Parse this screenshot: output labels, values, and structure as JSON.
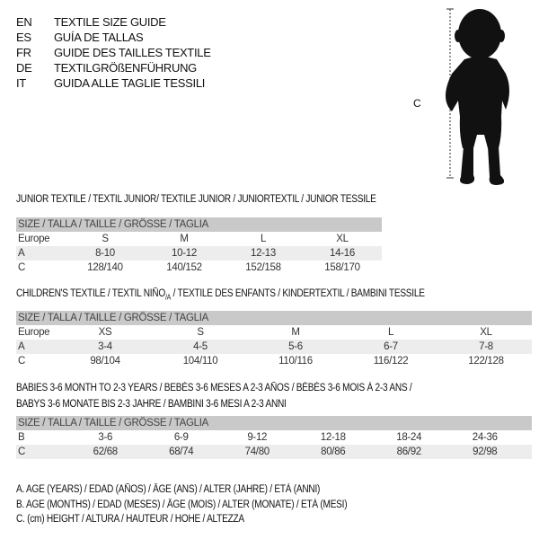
{
  "languages": [
    {
      "code": "EN",
      "text": "TEXTILE SIZE GUIDE"
    },
    {
      "code": "ES",
      "text": "GUÍA DE TALLAS"
    },
    {
      "code": "FR",
      "text": "GUIDE DES TAILLES TEXTILE"
    },
    {
      "code": "DE",
      "text": "TEXTILGRÖßENFÜHRUNG"
    },
    {
      "code": "IT",
      "text": "GUIDA ALLE TAGLIE TESSILI"
    }
  ],
  "figure": {
    "dimension_label": "C",
    "icon": "child-silhouette"
  },
  "junior": {
    "title": "JUNIOR TEXTILE / TEXTIL JUNIOR/ TEXTILE JUNIOR / JUNIORTEXTIL / JUNIOR TESSILE",
    "header": "SIZE / TALLA / TAILLE / GRÖSSE / TAGLIA",
    "rows": [
      {
        "label": "Europe",
        "cells": [
          "S",
          "M",
          "L",
          "XL"
        ]
      },
      {
        "label": "A",
        "cells": [
          "8-10",
          "10-12",
          "12-13",
          "14-16"
        ]
      },
      {
        "label": "C",
        "cells": [
          "128/140",
          "140/152",
          "152/158",
          "158/170"
        ]
      }
    ]
  },
  "children": {
    "title_main": "CHILDREN'S TEXTILE / TEXTIL NIÑO",
    "title_sub": "/A",
    "title_rest": " / TEXTILE DES ENFANTS / KINDERTEXTIL / BAMBINI TESSILE",
    "header": "SIZE / TALLA / TAILLE / GRÖSSE / TAGLIA",
    "rows": [
      {
        "label": "Europe",
        "cells": [
          "XS",
          "S",
          "M",
          "L",
          "XL"
        ]
      },
      {
        "label": "A",
        "cells": [
          "3-4",
          "4-5",
          "5-6",
          "6-7",
          "7-8"
        ]
      },
      {
        "label": "C",
        "cells": [
          "98/104",
          "104/110",
          "110/116",
          "116/122",
          "122/128"
        ]
      }
    ]
  },
  "babies": {
    "title_line1": "BABIES 3-6 MONTH TO 2-3 YEARS / BEBÉS 3-6 MESES A 2-3 AÑOS / BÉBÉS 3-6 MOIS À 2-3 ANS /",
    "title_line2": "BABYS 3-6 MONATE BIS 2-3 JAHRE / BAMBINI 3-6 MESI A 2-3 ANNI",
    "header": "SIZE / TALLA / TAILLE / GRÖSSE / TAGLIA",
    "rows": [
      {
        "label": "B",
        "cells": [
          "3-6",
          "6-9",
          "9-12",
          "12-18",
          "18-24",
          "24-36"
        ]
      },
      {
        "label": "C",
        "cells": [
          "62/68",
          "68/74",
          "74/80",
          "80/86",
          "86/92",
          "92/98"
        ]
      }
    ]
  },
  "legend": [
    "A. AGE (YEARS) / EDAD (AÑOS) / ÂGE (ANS) / ALTER (JAHRE) / ETÀ (ANNI)",
    "B. AGE (MONTHS) / EDAD (MESES) / ÂGE (MOIS) / ALTER (MONATE) / ETÀ (MESI)",
    "C. (cm) HEIGHT / ALTURA / HAUTEUR / HÖHE / ALTEZZA"
  ]
}
